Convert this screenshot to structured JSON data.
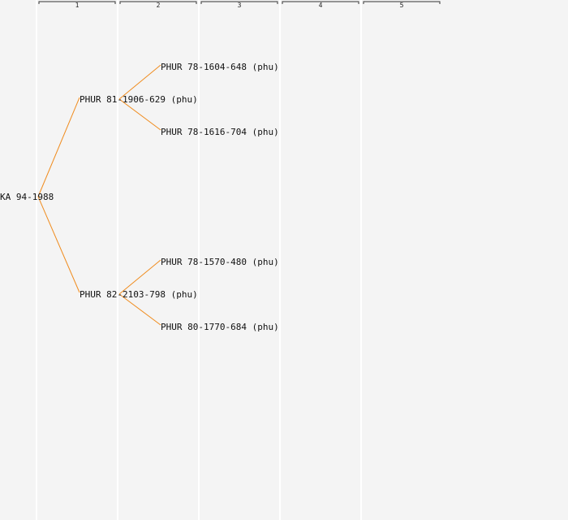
{
  "colors": {
    "background": "#f4f4f4",
    "column_divider": "#ffffff",
    "edge": "#f08c1e",
    "header_bracket": "#333333",
    "text": "#111111"
  },
  "generations": [
    "1",
    "2",
    "3",
    "4",
    "5"
  ],
  "nodes": [
    {
      "id": "root",
      "label": "KA 94-1988",
      "gen": 0
    },
    {
      "id": "p1",
      "label": "PHUR 81-1906-629 (phu)",
      "gen": 1,
      "parent": "root"
    },
    {
      "id": "p1a",
      "label": "PHUR 78-1604-648 (phu)",
      "gen": 2,
      "parent": "p1"
    },
    {
      "id": "p1b",
      "label": "PHUR 78-1616-704 (phu)",
      "gen": 2,
      "parent": "p1"
    },
    {
      "id": "p2",
      "label": "PHUR 82-2103-798 (phu)",
      "gen": 1,
      "parent": "root"
    },
    {
      "id": "p2a",
      "label": "PHUR 78-1570-480 (phu)",
      "gen": 2,
      "parent": "p2"
    },
    {
      "id": "p2b",
      "label": "PHUR 80-1770-684 (phu)",
      "gen": 2,
      "parent": "p2"
    }
  ]
}
